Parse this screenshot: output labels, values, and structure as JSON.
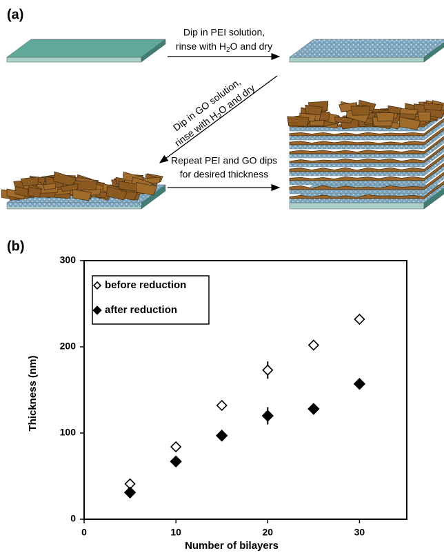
{
  "panel_a": {
    "label": "(a)",
    "step1": {
      "line1": "Dip in PEI solution,",
      "line2": [
        "rinse with H",
        "2",
        "O and dry"
      ]
    },
    "step2": {
      "line1": "Dip in GO solution,",
      "line2": [
        "rinse with H",
        "2",
        "O and dry"
      ]
    },
    "step3": {
      "line1": "Repeat PEI and GO dips",
      "line2": "for desired thickness"
    }
  },
  "panel_b_label": "(b)",
  "chart_data": {
    "type": "scatter",
    "x": [
      5,
      10,
      15,
      20,
      25,
      30
    ],
    "series": [
      {
        "name": "before reduction",
        "color": "#000000",
        "marker": "open-diamond",
        "values": [
          41,
          84,
          132,
          173,
          202,
          232
        ],
        "errors": [
          0,
          0,
          0,
          10,
          0,
          0
        ]
      },
      {
        "name": "after reduction",
        "color": "#000000",
        "marker": "filled-diamond",
        "values": [
          31,
          67,
          97,
          120,
          128,
          157
        ],
        "errors": [
          0,
          0,
          0,
          10,
          0,
          0
        ]
      }
    ],
    "x_label": "Number of bilayers",
    "y_label": "Thickness (nm)",
    "xlim": [
      0,
      35
    ],
    "ylim": [
      0,
      300
    ],
    "xticks": [
      0,
      10,
      20,
      30
    ],
    "yticks": [
      0,
      100,
      200,
      300
    ],
    "legend": "upper left"
  }
}
